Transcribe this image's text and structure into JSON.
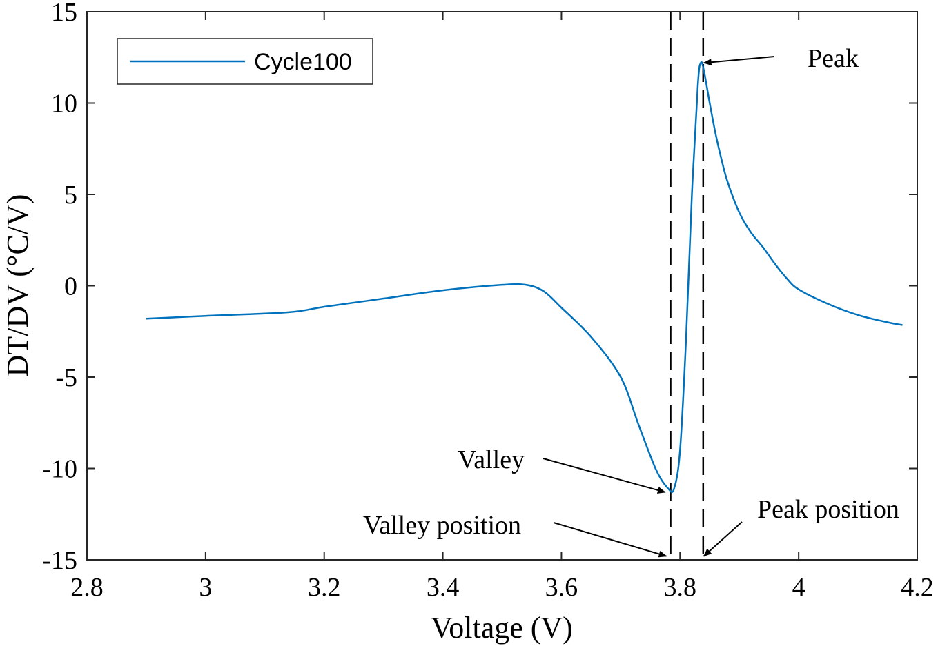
{
  "chart_data": {
    "type": "line",
    "title": "",
    "xlabel": "Voltage (V)",
    "ylabel": "DT/DV (°C/V)",
    "xlim": [
      2.8,
      4.2
    ],
    "ylim": [
      -15,
      15
    ],
    "xticks": [
      2.8,
      3,
      3.2,
      3.4,
      3.6,
      3.8,
      4,
      4.2
    ],
    "xtick_labels": [
      "2.8",
      "3",
      "3.2",
      "3.4",
      "3.6",
      "3.8",
      "4",
      "4.2"
    ],
    "yticks": [
      15,
      10,
      5,
      0,
      -5,
      -10,
      -15
    ],
    "ytick_labels": [
      "15",
      "10",
      "5",
      "0",
      "-5",
      "-10",
      "-15"
    ],
    "grid": false,
    "legend_position": "top-left",
    "series": [
      {
        "name": "Cycle100",
        "color": "#0072BD",
        "x": [
          2.9,
          3.0,
          3.14,
          3.2,
          3.3,
          3.4,
          3.5,
          3.54,
          3.57,
          3.6,
          3.65,
          3.7,
          3.73,
          3.76,
          3.78,
          3.79,
          3.8,
          3.81,
          3.82,
          3.83,
          3.835,
          3.84,
          3.85,
          3.86,
          3.87,
          3.88,
          3.9,
          3.92,
          3.94,
          3.96,
          3.98,
          4.0,
          4.05,
          4.1,
          4.15,
          4.175
        ],
        "y": [
          -1.8,
          -1.65,
          -1.45,
          -1.15,
          -0.7,
          -0.25,
          0.05,
          0.05,
          -0.3,
          -1.2,
          -2.8,
          -5.0,
          -7.6,
          -10.1,
          -11.1,
          -11.1,
          -9.0,
          -3.0,
          5.0,
          11.0,
          12.2,
          11.8,
          10.0,
          8.3,
          6.9,
          5.7,
          4.0,
          2.9,
          2.1,
          1.2,
          0.4,
          -0.2,
          -1.0,
          -1.6,
          -2.0,
          -2.15
        ]
      }
    ],
    "vertical_lines": [
      {
        "x": 3.784,
        "style": "dashed"
      },
      {
        "x": 3.839,
        "style": "dashed"
      }
    ],
    "annotations": [
      {
        "label": "Peak",
        "arrow_to": [
          3.84,
          12.2
        ]
      },
      {
        "label": "Valley",
        "arrow_to": [
          3.775,
          -11.3
        ]
      },
      {
        "label": "Valley position",
        "arrow_to": [
          3.777,
          -14.8
        ]
      },
      {
        "label": "Peak position",
        "arrow_to": [
          3.84,
          -14.8
        ]
      }
    ]
  }
}
